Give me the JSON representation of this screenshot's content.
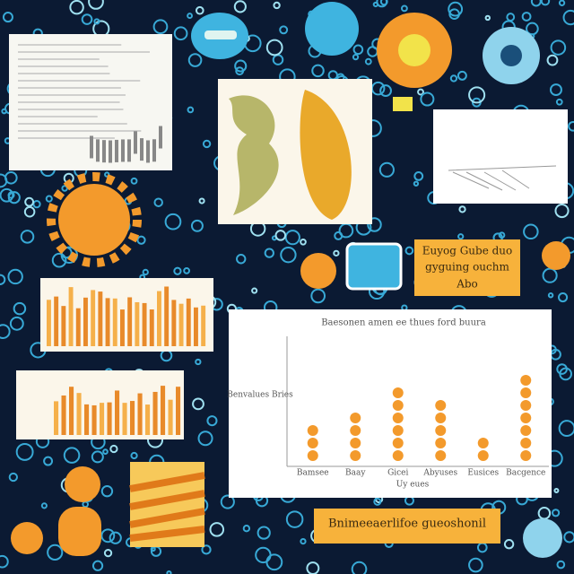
{
  "main_chart": {
    "title": "Baesonen amen ee thues ford buura",
    "y_label": "Benvalues Bries",
    "x_label": "Uy eues",
    "categories": [
      "Bamsee",
      "Baay",
      "Gicei",
      "Abyuses",
      "Eusices",
      "Bacgence"
    ],
    "values": [
      3,
      4,
      6,
      5,
      2,
      7
    ]
  },
  "orange_label": {
    "lines": [
      "Euyog Gube duo",
      "gyguing ouchm",
      "Abo"
    ]
  },
  "banner": {
    "text": "Bnimeeaerlifoe gueoshonil"
  }
}
